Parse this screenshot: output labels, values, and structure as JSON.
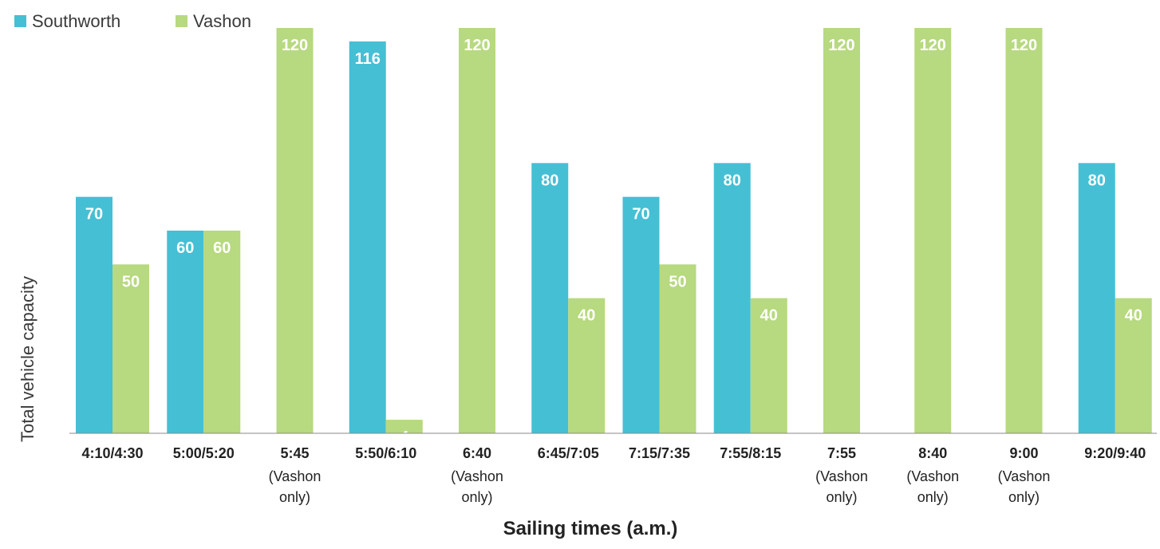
{
  "chart_data": {
    "type": "bar",
    "xlabel": "Sailing times (a.m.)",
    "ylabel": "Total vehicle capacity",
    "ylim": [
      0,
      120
    ],
    "grid": false,
    "legend_position": "top-left",
    "categories": [
      "4:10/4:30",
      "5:00/5:20",
      "5:45",
      "5:50/6:10",
      "6:40",
      "6:45/7:05",
      "7:15/7:35",
      "7:55/8:15",
      "7:55",
      "8:40",
      "9:00",
      "9:20/9:40"
    ],
    "category_notes": [
      "",
      "",
      "(Vashon only)",
      "",
      "(Vashon only)",
      "",
      "",
      "",
      "(Vashon only)",
      "(Vashon only)",
      "(Vashon only)",
      ""
    ],
    "series": [
      {
        "name": "Southworth",
        "color": "#45bfd4",
        "values": [
          70,
          60,
          null,
          116,
          null,
          80,
          70,
          80,
          null,
          null,
          null,
          80
        ]
      },
      {
        "name": "Vashon",
        "color": "#b7d97f",
        "values": [
          50,
          60,
          120,
          4,
          120,
          40,
          50,
          40,
          120,
          120,
          120,
          40
        ]
      }
    ]
  }
}
